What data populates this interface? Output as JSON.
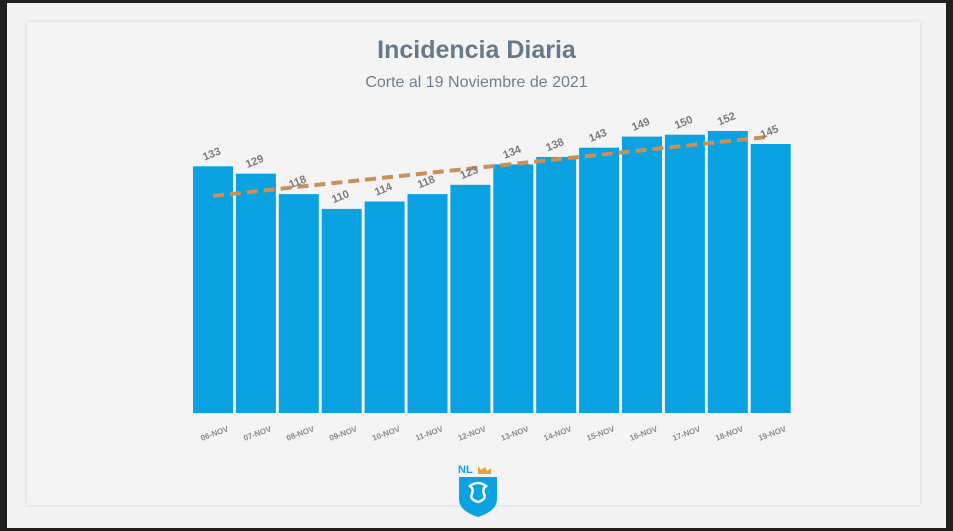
{
  "chart_data": {
    "type": "bar",
    "title": "Incidencia Diaria",
    "subtitle": "Corte al 19 Noviembre de 2021",
    "categories": [
      "06-NOV",
      "07-NOV",
      "08-NOV",
      "09-NOV",
      "10-NOV",
      "11-NOV",
      "12-NOV",
      "13-NOV",
      "14-NOV",
      "15-NOV",
      "16-NOV",
      "17-NOV",
      "18-NOV",
      "19-NOV"
    ],
    "values": [
      133,
      129,
      118,
      110,
      114,
      118,
      123,
      134,
      138,
      143,
      149,
      150,
      152,
      145
    ],
    "value_labels": [
      "133",
      "129",
      "118",
      "110",
      "114",
      "118",
      "123",
      "134",
      "138",
      "143",
      "149",
      "150",
      "152",
      "145"
    ],
    "trend": {
      "type": "linear",
      "style": "dashed",
      "start": 117,
      "end": 149
    },
    "ylim": [
      0,
      152
    ],
    "grid": false,
    "xlabel": "",
    "ylabel": "",
    "colors": {
      "bar": "#0ba2e2",
      "trend": "#c99155",
      "label": "#7b7b7b",
      "title": "#657a8c"
    }
  },
  "logo": {
    "text": "NL",
    "icon": "nl-crest-icon"
  }
}
